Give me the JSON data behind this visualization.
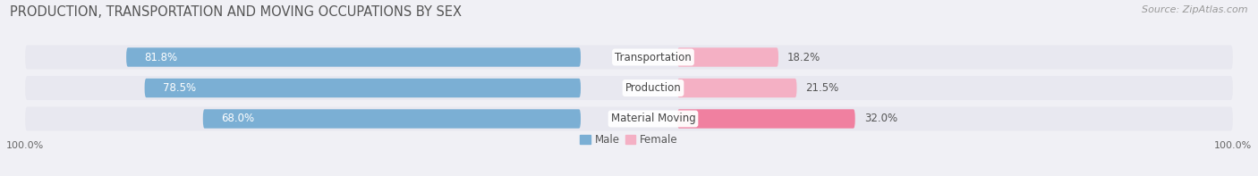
{
  "title": "PRODUCTION, TRANSPORTATION AND MOVING OCCUPATIONS BY SEX",
  "source": "Source: ZipAtlas.com",
  "categories": [
    "Transportation",
    "Production",
    "Material Moving"
  ],
  "male_values": [
    81.8,
    78.5,
    68.0
  ],
  "female_values": [
    18.2,
    21.5,
    32.0
  ],
  "male_color_top": "#7bafd4",
  "male_color_bottom": "#a8c8e8",
  "female_color_top": "#f080a0",
  "female_color_bottom": "#f4b0c4",
  "male_label": "Male",
  "female_label": "Female",
  "background_color": "#f0f0f5",
  "bar_bg_color": "#e2e2ea",
  "row_bg_color": "#e8e8f0",
  "x_left_label": "100.0%",
  "x_right_label": "100.0%",
  "title_fontsize": 10.5,
  "source_fontsize": 8,
  "label_fontsize": 8.5,
  "tick_fontsize": 8,
  "value_label_fontsize": 8.5
}
